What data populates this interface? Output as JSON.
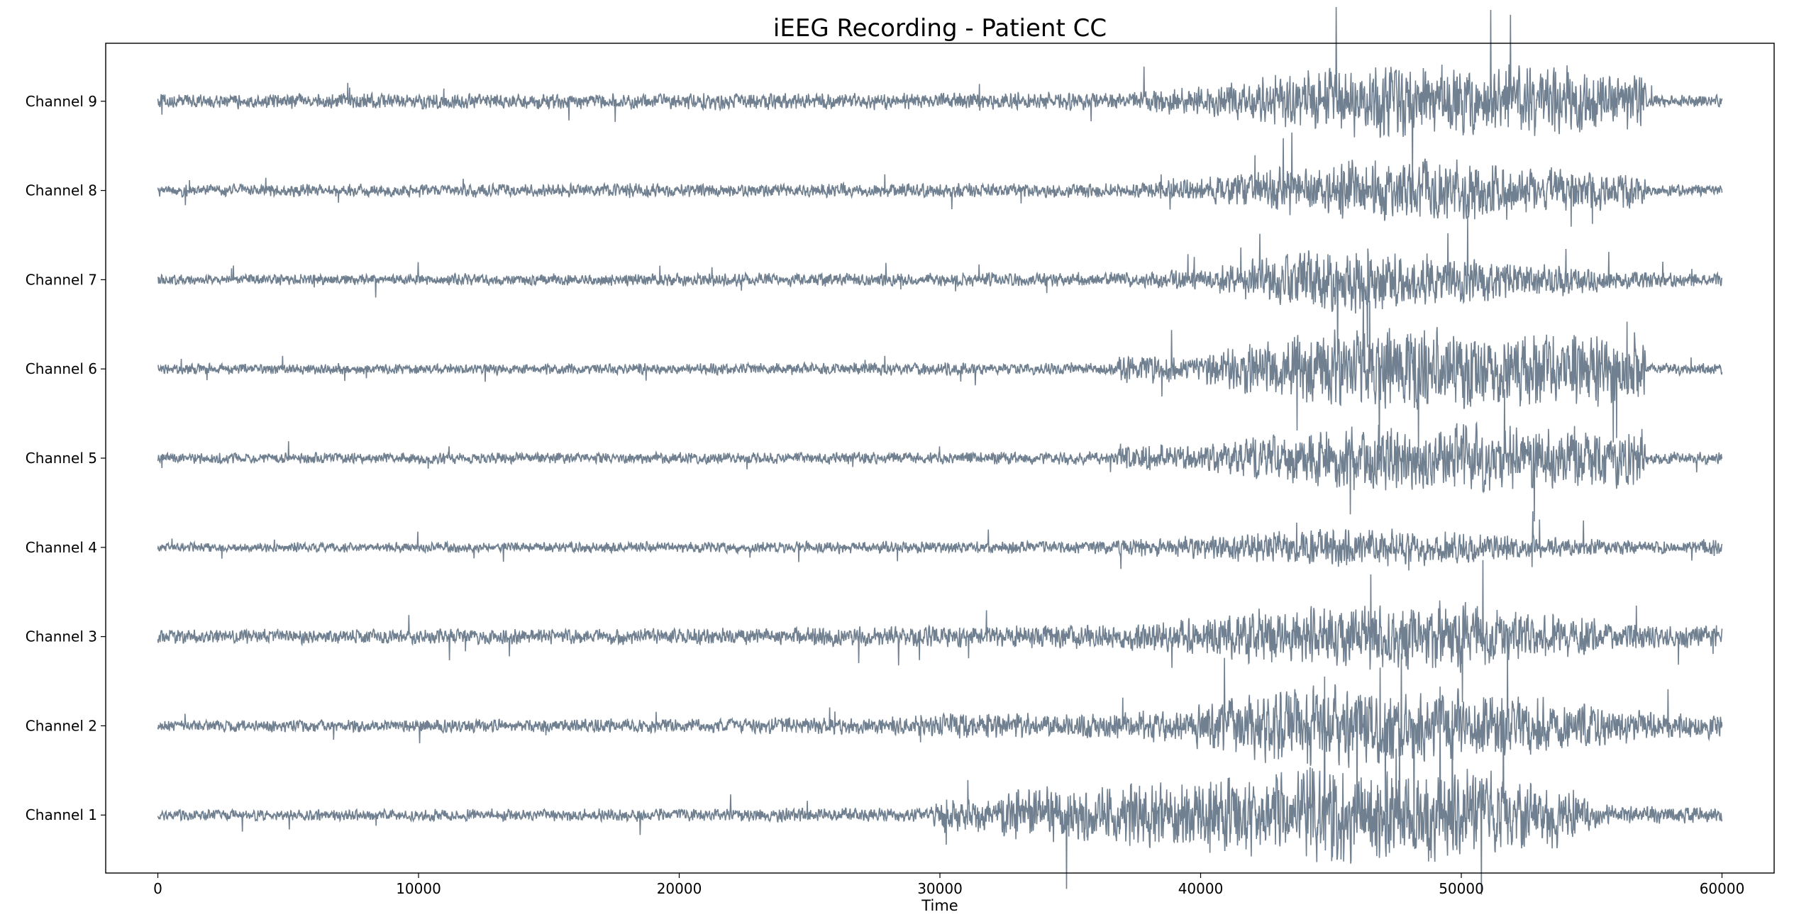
{
  "chart_data": {
    "type": "line",
    "title": "iEEG Recording - Patient CC",
    "xlabel": "Time",
    "ylabel": "",
    "xlim": [
      -2000,
      62000
    ],
    "x_ticks": [
      0,
      10000,
      20000,
      30000,
      40000,
      50000,
      60000
    ],
    "x_tick_labels": [
      "0",
      "10000",
      "20000",
      "30000",
      "40000",
      "50000",
      "60000"
    ],
    "grid": false,
    "legend": "none",
    "line_color": "#708090",
    "series_x_range": [
      0,
      60000
    ],
    "channels": [
      {
        "label": "Channel 9",
        "baseline_amp": 0.08,
        "envelope": [
          [
            0,
            0.08
          ],
          [
            36500,
            0.1
          ],
          [
            40000,
            0.16
          ],
          [
            42000,
            0.25
          ],
          [
            44000,
            0.35
          ],
          [
            47000,
            0.4
          ],
          [
            50000,
            0.4
          ],
          [
            54000,
            0.38
          ],
          [
            57000,
            0.3
          ],
          [
            57100,
            0.07
          ],
          [
            60000,
            0.07
          ]
        ]
      },
      {
        "label": "Channel 8",
        "baseline_amp": 0.07,
        "envelope": [
          [
            0,
            0.07
          ],
          [
            37000,
            0.08
          ],
          [
            40000,
            0.13
          ],
          [
            42000,
            0.22
          ],
          [
            44000,
            0.3
          ],
          [
            47000,
            0.35
          ],
          [
            50000,
            0.35
          ],
          [
            54000,
            0.25
          ],
          [
            57000,
            0.18
          ],
          [
            57100,
            0.07
          ],
          [
            60000,
            0.07
          ]
        ]
      },
      {
        "label": "Channel 7",
        "baseline_amp": 0.06,
        "envelope": [
          [
            0,
            0.06
          ],
          [
            37000,
            0.08
          ],
          [
            40000,
            0.12
          ],
          [
            43000,
            0.3
          ],
          [
            45500,
            0.4
          ],
          [
            48000,
            0.3
          ],
          [
            52000,
            0.22
          ],
          [
            56000,
            0.12
          ],
          [
            57500,
            0.08
          ],
          [
            60000,
            0.08
          ]
        ]
      },
      {
        "label": "Channel 6",
        "baseline_amp": 0.06,
        "envelope": [
          [
            0,
            0.06
          ],
          [
            36800,
            0.07
          ],
          [
            36900,
            0.16
          ],
          [
            40000,
            0.15
          ],
          [
            42000,
            0.3
          ],
          [
            45000,
            0.42
          ],
          [
            50000,
            0.45
          ],
          [
            54000,
            0.42
          ],
          [
            57000,
            0.4
          ],
          [
            57100,
            0.07
          ],
          [
            60000,
            0.07
          ]
        ]
      },
      {
        "label": "Channel 5",
        "baseline_amp": 0.06,
        "envelope": [
          [
            0,
            0.06
          ],
          [
            36800,
            0.07
          ],
          [
            36900,
            0.16
          ],
          [
            40000,
            0.14
          ],
          [
            42000,
            0.24
          ],
          [
            46000,
            0.35
          ],
          [
            50000,
            0.38
          ],
          [
            54000,
            0.35
          ],
          [
            57000,
            0.32
          ],
          [
            57100,
            0.07
          ],
          [
            60000,
            0.07
          ]
        ]
      },
      {
        "label": "Channel 4",
        "baseline_amp": 0.05,
        "envelope": [
          [
            0,
            0.05
          ],
          [
            36000,
            0.07
          ],
          [
            40000,
            0.13
          ],
          [
            43000,
            0.18
          ],
          [
            45500,
            0.22
          ],
          [
            48000,
            0.2
          ],
          [
            52000,
            0.14
          ],
          [
            56000,
            0.08
          ],
          [
            59000,
            0.07
          ],
          [
            60000,
            0.12
          ]
        ]
      },
      {
        "label": "Channel 3",
        "baseline_amp": 0.08,
        "envelope": [
          [
            0,
            0.08
          ],
          [
            20000,
            0.09
          ],
          [
            30000,
            0.12
          ],
          [
            37000,
            0.14
          ],
          [
            40000,
            0.2
          ],
          [
            42000,
            0.3
          ],
          [
            46000,
            0.35
          ],
          [
            50000,
            0.38
          ],
          [
            53000,
            0.25
          ],
          [
            57000,
            0.15
          ],
          [
            60000,
            0.12
          ]
        ]
      },
      {
        "label": "Channel 2",
        "baseline_amp": 0.06,
        "envelope": [
          [
            0,
            0.06
          ],
          [
            20000,
            0.08
          ],
          [
            28000,
            0.1
          ],
          [
            31000,
            0.14
          ],
          [
            37000,
            0.14
          ],
          [
            40000,
            0.25
          ],
          [
            42500,
            0.42
          ],
          [
            45000,
            0.45
          ],
          [
            50000,
            0.4
          ],
          [
            54000,
            0.28
          ],
          [
            58000,
            0.15
          ],
          [
            60000,
            0.15
          ]
        ]
      },
      {
        "label": "Channel 1",
        "baseline_amp": 0.06,
        "envelope": [
          [
            0,
            0.06
          ],
          [
            29500,
            0.08
          ],
          [
            30000,
            0.2
          ],
          [
            32000,
            0.18
          ],
          [
            33000,
            0.3
          ],
          [
            37000,
            0.35
          ],
          [
            40000,
            0.4
          ],
          [
            45000,
            0.55
          ],
          [
            50000,
            0.5
          ],
          [
            54000,
            0.35
          ],
          [
            55500,
            0.12
          ],
          [
            60000,
            0.08
          ]
        ]
      }
    ]
  }
}
